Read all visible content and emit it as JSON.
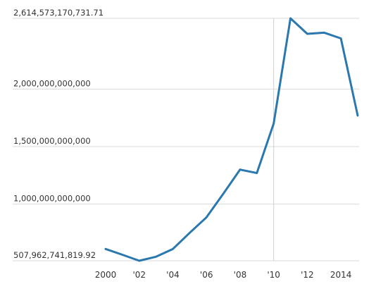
{
  "chart_data": {
    "type": "line",
    "title": "",
    "xlabel": "",
    "ylabel": "",
    "x": [
      2000,
      2001,
      2002,
      2003,
      2004,
      2005,
      2006,
      2007,
      2008,
      2009,
      2010,
      2011,
      2012,
      2013,
      2014,
      2015
    ],
    "series": [
      {
        "name": "",
        "values": [
          610000000000,
          560000000000,
          507962741819.92,
          543000000000,
          610000000000,
          750000000000,
          885000000000,
          1090000000000,
          1300000000000,
          1270000000000,
          1700000000000,
          2614573170731.71,
          2480000000000,
          2490000000000,
          2440000000000,
          1770000000000
        ]
      }
    ],
    "xlim": [
      2000,
      2015
    ],
    "ylim": [
      507962741819.92,
      2614573170731.71
    ],
    "y_ticks": [
      {
        "value": 2614573170731.71,
        "label": "2,614,573,170,731.71"
      },
      {
        "value": 2000000000000,
        "label": "2,000,000,000,000"
      },
      {
        "value": 1500000000000,
        "label": "1,500,000,000,000"
      },
      {
        "value": 1000000000000,
        "label": "1,000,000,000,000"
      },
      {
        "value": 507962741819.92,
        "label": "507,962,741,819.92"
      }
    ],
    "x_ticks": [
      {
        "value": 2000,
        "label": "2000"
      },
      {
        "value": 2002,
        "label": "'02"
      },
      {
        "value": 2004,
        "label": "'04"
      },
      {
        "value": 2006,
        "label": "'06"
      },
      {
        "value": 2008,
        "label": "'08"
      },
      {
        "value": 2010,
        "label": "'10"
      },
      {
        "value": 2012,
        "label": "'12"
      },
      {
        "value": 2014,
        "label": "2014"
      }
    ],
    "highlight_x": 2010,
    "grid": true,
    "colors": {
      "line": "#2a78ae",
      "grid": "#d9d9d9"
    }
  }
}
